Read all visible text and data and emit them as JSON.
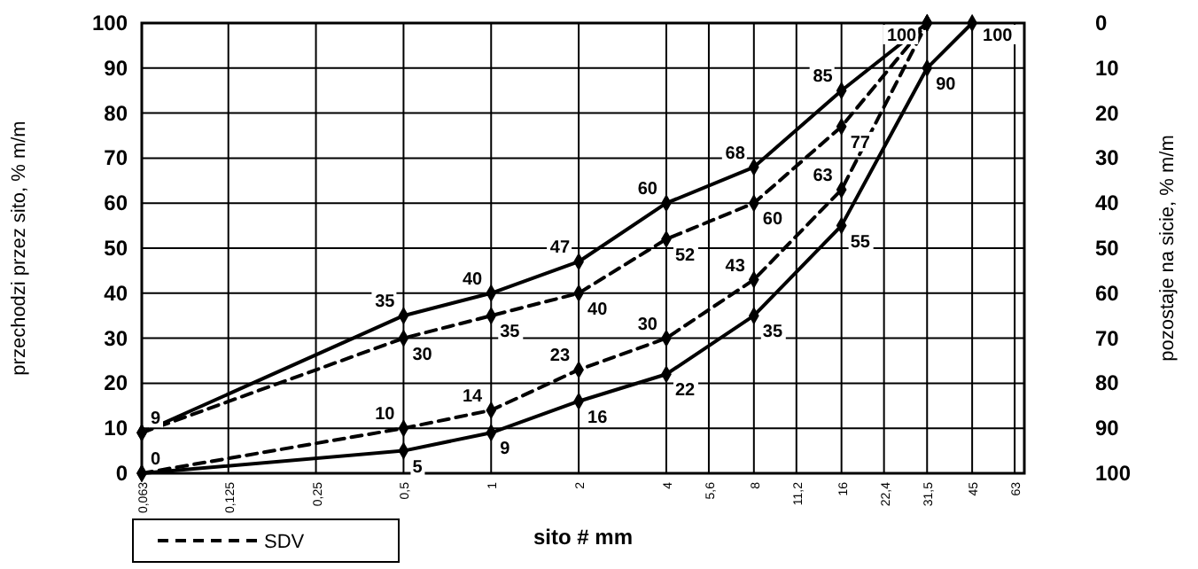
{
  "chart_data": {
    "type": "line",
    "xlabel": "sito # mm",
    "ylabel": "przechodzi przez sito, % m/m",
    "y2label": "pozostaje na sicie, % m/m",
    "x": [
      0.063,
      0.5,
      1,
      2,
      4,
      8,
      16,
      31.5,
      45
    ],
    "log": "x",
    "xlim": [
      0.063,
      68
    ],
    "xticks": [
      {
        "value": 0.063,
        "label": "0,063"
      },
      {
        "value": 0.125,
        "label": "0,125"
      },
      {
        "value": 0.25,
        "label": "0,25"
      },
      {
        "value": 0.5,
        "label": "0,5"
      },
      1,
      2,
      4,
      {
        "value": 5.6,
        "label": "5,6"
      },
      8,
      {
        "value": 11.2,
        "label": "11,2"
      },
      16,
      {
        "value": 22.4,
        "label": "22,4"
      },
      {
        "value": 31.5,
        "label": "31,5"
      },
      45,
      63
    ],
    "ylim": [
      0,
      100
    ],
    "yticks": [
      0,
      10,
      20,
      30,
      40,
      50,
      60,
      70,
      80,
      90,
      100
    ],
    "y2lim": [
      100,
      0
    ],
    "y2ticks": [
      0,
      10,
      20,
      30,
      40,
      50,
      60,
      70,
      80,
      90,
      100
    ],
    "grid": true,
    "legend": "bottom left",
    "marker": "diamond",
    "series": [
      {
        "color": "#000000",
        "line_style": "solid",
        "values": [
          9,
          35,
          40,
          47,
          60,
          68,
          85,
          100,
          null
        ],
        "value_labels": [
          "9",
          "35",
          "40",
          "47",
          "60",
          "68",
          "85",
          "100",
          null
        ]
      },
      {
        "color": "#000000",
        "line_style": "solid",
        "values": [
          0,
          5,
          9,
          16,
          22,
          35,
          55,
          90,
          100
        ],
        "value_labels": [
          "0",
          "5",
          "9",
          "16",
          "22",
          "35",
          "55",
          "90",
          "100"
        ]
      },
      {
        "name": "SDV",
        "color": "#000000",
        "line_style": "dashed",
        "values": [
          9,
          30,
          35,
          40,
          52,
          60,
          77,
          100,
          null
        ],
        "value_labels": [
          null,
          "30",
          "35",
          "40",
          "52",
          "60",
          "77",
          null,
          null
        ]
      },
      {
        "color": "#000000",
        "line_style": "dashed",
        "values": [
          0,
          10,
          14,
          23,
          30,
          43,
          63,
          100,
          null
        ],
        "value_labels": [
          null,
          "10",
          "14",
          "23",
          "30",
          "43",
          "63",
          null,
          null
        ]
      }
    ]
  }
}
